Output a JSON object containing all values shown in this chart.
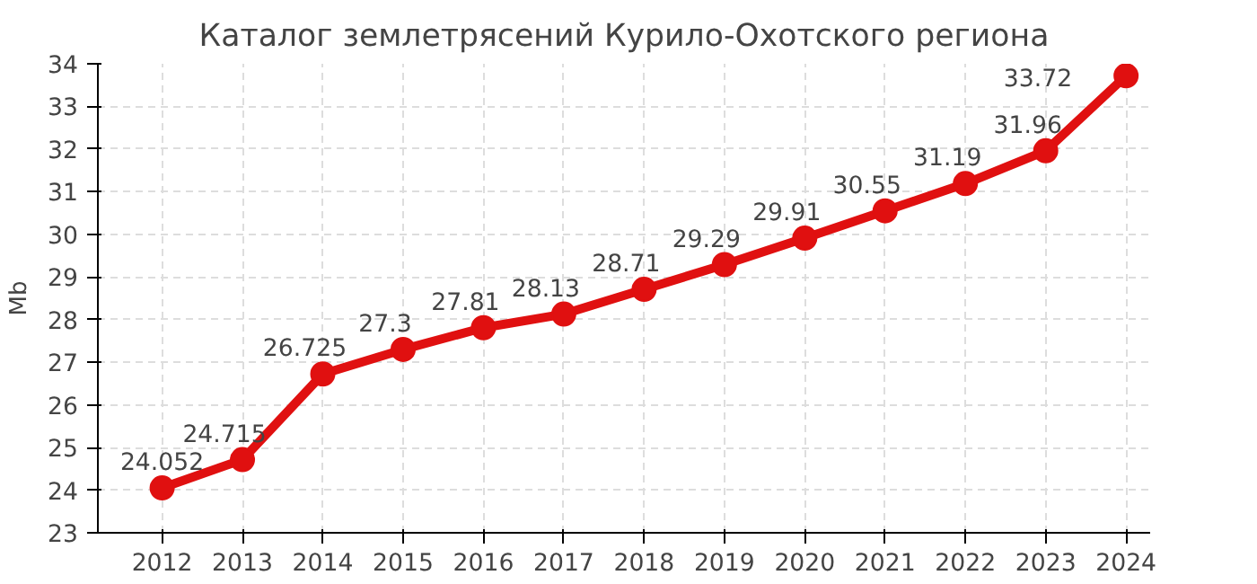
{
  "chart_data": {
    "type": "line",
    "title": "Каталог землетрясений Курило-Охотского региона",
    "ylabel": "Mb",
    "categories": [
      "2012",
      "2013",
      "2014",
      "2015",
      "2016",
      "2017",
      "2018",
      "2019",
      "2020",
      "2021",
      "2022",
      "2023",
      "2024"
    ],
    "series": [
      {
        "color": "#e01010",
        "values": [
          24.052,
          24.715,
          26.725,
          27.3,
          27.81,
          28.13,
          28.71,
          29.29,
          29.91,
          30.55,
          31.19,
          31.96,
          33.72
        ]
      }
    ],
    "ylim": [
      23,
      34
    ],
    "yticks": [
      23,
      24,
      25,
      26,
      27,
      28,
      29,
      30,
      31,
      32,
      33,
      34
    ],
    "grid": true,
    "marker": "circle",
    "line_style": "solid",
    "data_labels": true
  }
}
